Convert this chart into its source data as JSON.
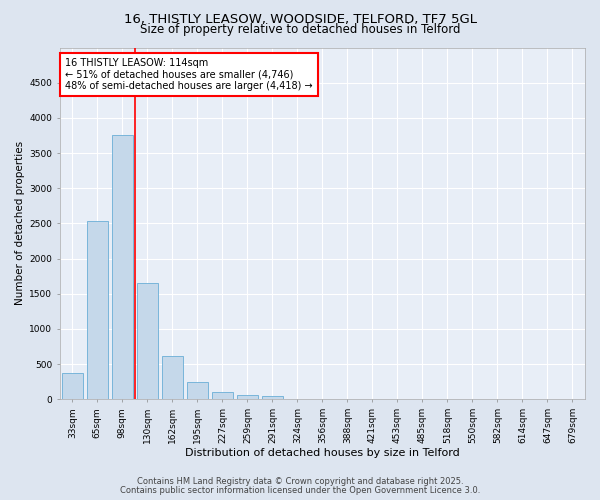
{
  "title_line1": "16, THISTLY LEASOW, WOODSIDE, TELFORD, TF7 5GL",
  "title_line2": "Size of property relative to detached houses in Telford",
  "xlabel": "Distribution of detached houses by size in Telford",
  "ylabel": "Number of detached properties",
  "categories": [
    "33sqm",
    "65sqm",
    "98sqm",
    "130sqm",
    "162sqm",
    "195sqm",
    "227sqm",
    "259sqm",
    "291sqm",
    "324sqm",
    "356sqm",
    "388sqm",
    "421sqm",
    "453sqm",
    "485sqm",
    "518sqm",
    "550sqm",
    "582sqm",
    "614sqm",
    "647sqm",
    "679sqm"
  ],
  "values": [
    370,
    2540,
    3760,
    1650,
    610,
    245,
    108,
    55,
    50,
    0,
    0,
    0,
    0,
    0,
    0,
    0,
    0,
    0,
    0,
    0,
    0
  ],
  "bar_color": "#c5d8ea",
  "bar_edge_color": "#6aaed6",
  "vline_color": "red",
  "vline_xval": 2.5,
  "annotation_text": "16 THISTLY LEASOW: 114sqm\n← 51% of detached houses are smaller (4,746)\n48% of semi-detached houses are larger (4,418) →",
  "annotation_box_color": "white",
  "annotation_box_edge_color": "red",
  "ylim": [
    0,
    5000
  ],
  "yticks": [
    0,
    500,
    1000,
    1500,
    2000,
    2500,
    3000,
    3500,
    4000,
    4500
  ],
  "bg_color": "#dde5f0",
  "plot_bg_color": "#e8eef7",
  "footer_line1": "Contains HM Land Registry data © Crown copyright and database right 2025.",
  "footer_line2": "Contains public sector information licensed under the Open Government Licence 3.0.",
  "title_fontsize": 9.5,
  "subtitle_fontsize": 8.5,
  "xlabel_fontsize": 8,
  "ylabel_fontsize": 7.5,
  "tick_fontsize": 6.5,
  "annotation_fontsize": 7,
  "footer_fontsize": 6
}
